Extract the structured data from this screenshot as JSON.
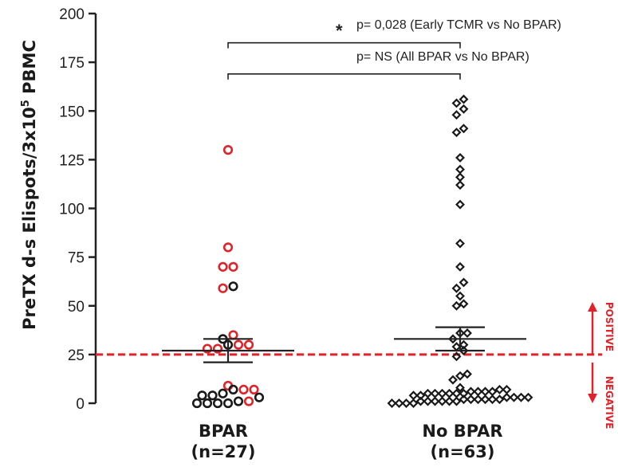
{
  "chart_data": {
    "type": "scatter",
    "ylabel_main": "PreTX d-s Elispots/3x10",
    "ylabel_sup": "5",
    "ylabel_tail": " PBMC",
    "ylim": [
      0,
      200
    ],
    "yticks": [
      0,
      25,
      50,
      75,
      100,
      125,
      150,
      175,
      200
    ],
    "groups": [
      {
        "name": "BPAR",
        "n_label": "(n=27)",
        "mean": 27,
        "err_upper": 33,
        "err_lower": 21,
        "points": [
          {
            "y": 130,
            "c": "red"
          },
          {
            "y": 80,
            "c": "red"
          },
          {
            "y": 70,
            "c": "red"
          },
          {
            "y": 70,
            "c": "red"
          },
          {
            "y": 60,
            "c": "black"
          },
          {
            "y": 59,
            "c": "red"
          },
          {
            "y": 35,
            "c": "red"
          },
          {
            "y": 33,
            "c": "black"
          },
          {
            "y": 30,
            "c": "black"
          },
          {
            "y": 30,
            "c": "red"
          },
          {
            "y": 30,
            "c": "red"
          },
          {
            "y": 28,
            "c": "red"
          },
          {
            "y": 28,
            "c": "red"
          },
          {
            "y": 9,
            "c": "red"
          },
          {
            "y": 7,
            "c": "black"
          },
          {
            "y": 7,
            "c": "red"
          },
          {
            "y": 7,
            "c": "red"
          },
          {
            "y": 5,
            "c": "black"
          },
          {
            "y": 4,
            "c": "black"
          },
          {
            "y": 4,
            "c": "black"
          },
          {
            "y": 3,
            "c": "black"
          },
          {
            "y": 1,
            "c": "black"
          },
          {
            "y": 1,
            "c": "red"
          },
          {
            "y": 0,
            "c": "black"
          },
          {
            "y": 0,
            "c": "black"
          },
          {
            "y": 0,
            "c": "black"
          },
          {
            "y": 0,
            "c": "black"
          }
        ]
      },
      {
        "name": "No BPAR",
        "n_label": "(n=63)",
        "mean": 33,
        "err_upper": 39,
        "err_lower": 27,
        "points": [
          156,
          154,
          151,
          148,
          141,
          139,
          126,
          120,
          116,
          112,
          102,
          82,
          70,
          62,
          59,
          55,
          51,
          50,
          36,
          36,
          33,
          30,
          29,
          27,
          24,
          15,
          14,
          12,
          8,
          7,
          7,
          6,
          6,
          6,
          6,
          5,
          5,
          5,
          5,
          5,
          5,
          4,
          4,
          3,
          3,
          3,
          3,
          2,
          2,
          2,
          2,
          2,
          2,
          1,
          1,
          1,
          1,
          1,
          1,
          0,
          0,
          0,
          0
        ]
      }
    ],
    "threshold": 25,
    "threshold_color": "#e0232a",
    "point_red": "#e0232a",
    "point_black": "#1a1a1a",
    "comparisons": [
      {
        "star": "*",
        "label": "p= 0,028 (Early TCMR vs No BPAR)",
        "y": 185
      },
      {
        "label": "p= NS (All BPAR vs No BPAR)",
        "y": 169
      }
    ],
    "side_labels": {
      "positive": "POSITIVE",
      "negative": "NEGATIVE"
    }
  }
}
